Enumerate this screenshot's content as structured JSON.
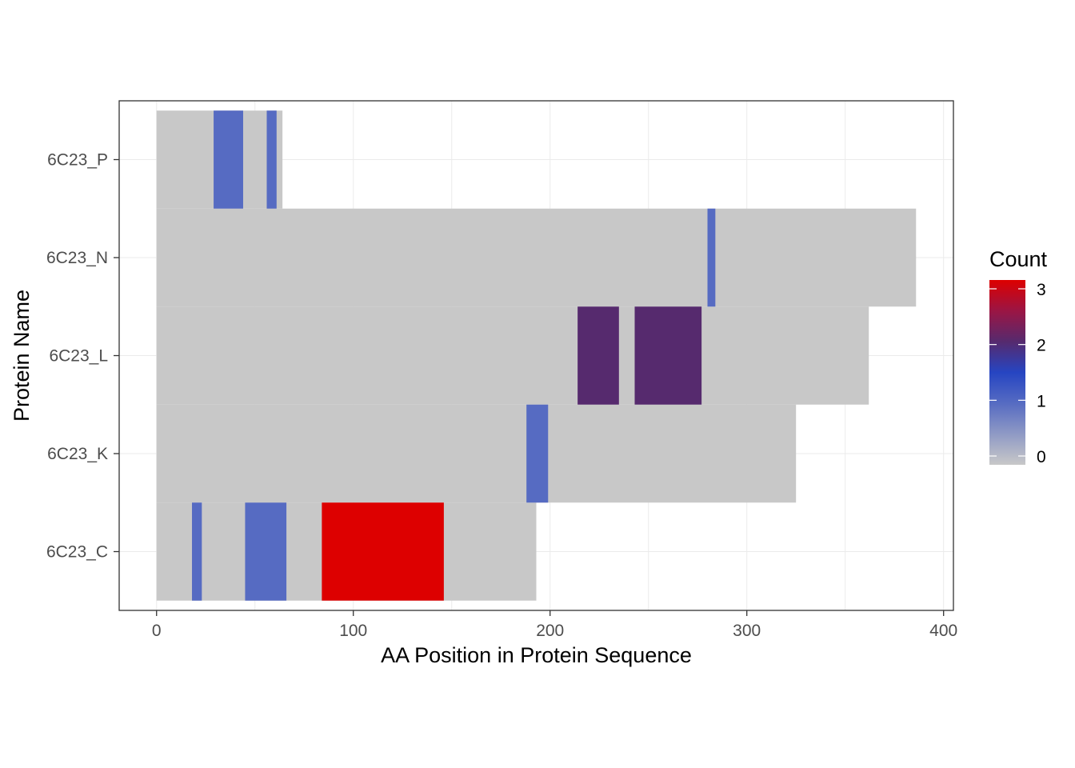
{
  "chart_data": {
    "type": "heatmap",
    "xlabel": "AA Position in Protein Sequence",
    "ylabel": "Protein Name",
    "xlim": [
      -19,
      405
    ],
    "x_ticks": [
      0,
      100,
      200,
      300,
      400
    ],
    "x_tick_labels": [
      "0",
      "100",
      "200",
      "300",
      "400"
    ],
    "categories": [
      "6C23_C",
      "6C23_K",
      "6C23_L",
      "6C23_N",
      "6C23_P"
    ],
    "grid": true,
    "legend": {
      "title": "Count",
      "position": "right",
      "min": 0,
      "max": 3,
      "breaks": [
        0,
        1,
        2,
        3
      ],
      "break_labels": [
        "0",
        "1",
        "2",
        "3"
      ],
      "colors": [
        {
          "value": 0,
          "color": "#c8c8c8"
        },
        {
          "value": 1,
          "color": "#566bc2"
        },
        {
          "value": 1.5,
          "color": "#2645c2"
        },
        {
          "value": 2,
          "color": "#562a6e"
        },
        {
          "value": 2.5,
          "color": "#9b1544"
        },
        {
          "value": 3,
          "color": "#dd0000"
        }
      ]
    },
    "proteins": [
      {
        "name": "6C23_C",
        "length": 193,
        "regions": [
          {
            "start": 18,
            "end": 23,
            "count": 1
          },
          {
            "start": 45,
            "end": 66,
            "count": 1
          },
          {
            "start": 84,
            "end": 146,
            "count": 3
          }
        ]
      },
      {
        "name": "6C23_K",
        "length": 325,
        "regions": [
          {
            "start": 188,
            "end": 199,
            "count": 1
          }
        ]
      },
      {
        "name": "6C23_L",
        "length": 362,
        "regions": [
          {
            "start": 214,
            "end": 235,
            "count": 2
          },
          {
            "start": 243,
            "end": 277,
            "count": 2
          }
        ]
      },
      {
        "name": "6C23_N",
        "length": 386,
        "regions": [
          {
            "start": 280,
            "end": 284,
            "count": 1
          }
        ]
      },
      {
        "name": "6C23_P",
        "length": 64,
        "regions": [
          {
            "start": 29,
            "end": 44,
            "count": 1
          },
          {
            "start": 56,
            "end": 61,
            "count": 1
          }
        ]
      }
    ]
  }
}
